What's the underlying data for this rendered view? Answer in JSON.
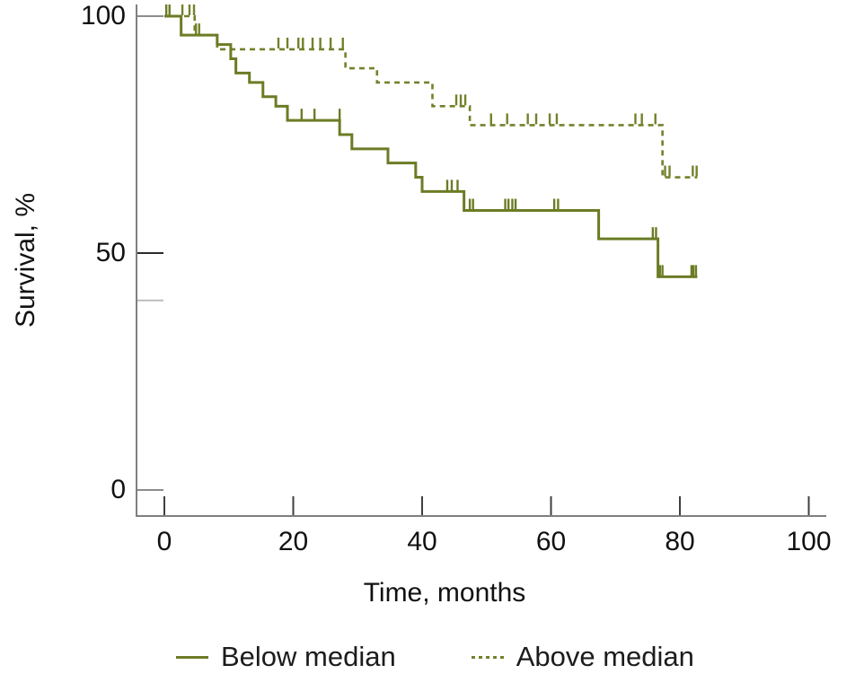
{
  "figure": {
    "x_axis_title": "Time, months",
    "y_axis_title": "Survival, %",
    "legend": [
      {
        "label": "Below median",
        "line": "solid"
      },
      {
        "label": "Above median",
        "line": "dashed"
      }
    ]
  },
  "chart_data": {
    "type": "line",
    "subtype": "kaplan-meier-step-survival",
    "title": "",
    "xlabel": "Time, months",
    "ylabel": "Survival, %",
    "xlim": [
      0,
      100
    ],
    "ylim": [
      0,
      100
    ],
    "grid": false,
    "legend_position": "bottom",
    "xticks": [
      0,
      20,
      40,
      60,
      80,
      100
    ],
    "xtick_labels": [
      "0",
      "20",
      "40",
      "60",
      "80",
      "100"
    ],
    "yticks": [
      100,
      50,
      0
    ],
    "ytick_labels": [
      "100",
      "50",
      "0"
    ],
    "ytick_colors": [
      "#8c8c8c",
      "#2b2b2b",
      "#8c8c8c"
    ],
    "ytick_minor": [
      40
    ],
    "colors": {
      "solid_line": "#6b7c25",
      "dashed_line": "#71822b",
      "axis": "#7f7f7f",
      "minor_tick": "#bdbdbd",
      "x_tick": "#3f3f3f",
      "text": "#111111"
    },
    "series": [
      {
        "name": "Below median",
        "line": "solid",
        "color": "#6b7c25",
        "end_time": 82.7,
        "steps": [
          [
            0,
            100
          ],
          [
            2.6,
            96
          ],
          [
            8.2,
            94
          ],
          [
            10.3,
            91
          ],
          [
            11.1,
            88
          ],
          [
            13.2,
            86
          ],
          [
            15.3,
            83
          ],
          [
            17.3,
            81
          ],
          [
            19.1,
            78
          ],
          [
            27.2,
            75
          ],
          [
            29.1,
            72
          ],
          [
            34.7,
            69
          ],
          [
            39,
            66
          ],
          [
            40,
            63
          ],
          [
            46.5,
            59
          ],
          [
            67.4,
            53
          ],
          [
            76.6,
            45
          ]
        ],
        "censor_marks": [
          [
            0.3,
            100
          ],
          [
            0.8,
            100
          ],
          [
            21.3,
            78
          ],
          [
            23.3,
            78
          ],
          [
            27.2,
            78
          ],
          [
            43.9,
            63
          ],
          [
            44.6,
            63
          ],
          [
            45.5,
            63
          ],
          [
            47.4,
            59
          ],
          [
            47.9,
            59
          ],
          [
            52.9,
            59
          ],
          [
            53.4,
            59
          ],
          [
            54,
            59
          ],
          [
            54.5,
            59
          ],
          [
            60.5,
            59
          ],
          [
            61.1,
            59
          ],
          [
            75.8,
            53
          ],
          [
            76.3,
            53
          ],
          [
            76.9,
            45
          ],
          [
            77.3,
            45
          ],
          [
            81.8,
            45
          ],
          [
            82.1,
            45
          ],
          [
            82.5,
            45
          ]
        ]
      },
      {
        "name": "Above median",
        "line": "dashed",
        "color": "#71822b",
        "end_time": 82.7,
        "steps": [
          [
            0,
            100
          ],
          [
            4.7,
            96
          ],
          [
            8.2,
            93
          ],
          [
            28.1,
            89
          ],
          [
            33,
            86
          ],
          [
            41.6,
            81
          ],
          [
            47.4,
            77
          ],
          [
            77.3,
            66
          ]
        ],
        "censor_marks": [
          [
            2.8,
            100
          ],
          [
            3.9,
            100
          ],
          [
            4.6,
            100
          ],
          [
            4.9,
            96
          ],
          [
            5.4,
            96
          ],
          [
            17.7,
            93
          ],
          [
            19.1,
            93
          ],
          [
            20.8,
            93
          ],
          [
            21.5,
            93
          ],
          [
            23,
            93
          ],
          [
            24.2,
            93
          ],
          [
            25.8,
            93
          ],
          [
            27.7,
            93
          ],
          [
            45.3,
            81
          ],
          [
            46,
            81
          ],
          [
            46.7,
            81
          ],
          [
            50.7,
            77
          ],
          [
            53.2,
            77
          ],
          [
            56.4,
            77
          ],
          [
            57.7,
            77
          ],
          [
            59.8,
            77
          ],
          [
            60.9,
            77
          ],
          [
            73.1,
            77
          ],
          [
            74.1,
            77
          ],
          [
            76.2,
            77
          ],
          [
            77.7,
            66
          ],
          [
            78.4,
            66
          ],
          [
            82,
            66
          ],
          [
            82.6,
            66
          ]
        ]
      }
    ]
  }
}
